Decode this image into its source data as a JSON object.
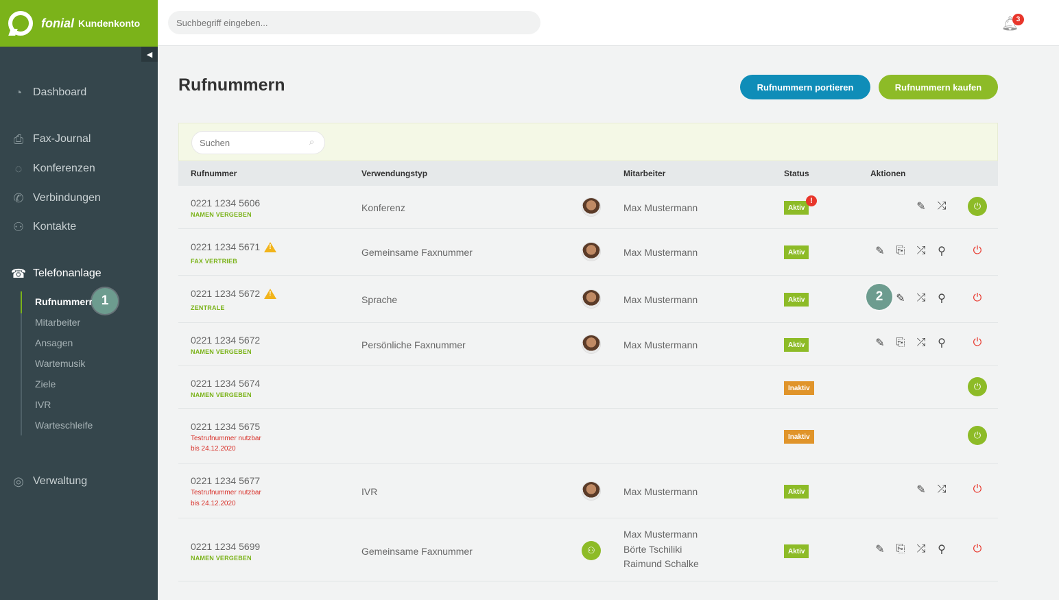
{
  "brand": {
    "name": "fonial",
    "sub": "Kundenkonto"
  },
  "topbar": {
    "search_placeholder": "Suchbegriff eingeben...",
    "notification_count": "3"
  },
  "sidebar": {
    "items": [
      {
        "label": "Dashboard",
        "icon": "dashboard-icon"
      },
      {
        "label": "Fax-Journal",
        "icon": "fax-icon"
      },
      {
        "label": "Konferenzen",
        "icon": "conference-icon"
      },
      {
        "label": "Verbindungen",
        "icon": "phone-icon"
      },
      {
        "label": "Kontakte",
        "icon": "contacts-icon"
      },
      {
        "label": "Telefonanlage",
        "icon": "pbx-icon"
      },
      {
        "label": "Verwaltung",
        "icon": "user-icon"
      }
    ],
    "subitems": [
      "Rufnummern",
      "Mitarbeiter",
      "Ansagen",
      "Wartemusik",
      "Ziele",
      "IVR",
      "Warteschleife"
    ],
    "step1": "1"
  },
  "main": {
    "title": "Rufnummern",
    "btn_port": "Rufnummern portieren",
    "btn_buy": "Rufnummern kaufen",
    "search_placeholder": "Suchen",
    "step2": "2",
    "headers": {
      "number": "Rufnummer",
      "type": "Verwendungstyp",
      "employee": "Mitarbeiter",
      "status": "Status",
      "actions": "Aktionen"
    }
  },
  "rows": [
    {
      "number": "0221 1234 5606",
      "sub": "NAMEN VERGEBEN",
      "type": "Konferenz",
      "employee": "Max Mustermann",
      "status": "Aktiv"
    },
    {
      "number": "0221 1234 5671",
      "sub": "FAX VERTRIEB",
      "type": "Gemeinsame Faxnummer",
      "employee": "Max Mustermann",
      "status": "Aktiv"
    },
    {
      "number": "0221 1234 5672",
      "sub": "ZENTRALE",
      "type": "Sprache",
      "employee": "Max Mustermann",
      "status": "Aktiv"
    },
    {
      "number": "0221 1234 5672",
      "sub": "NAMEN VERGEBEN",
      "type": "Persönliche Faxnummer",
      "employee": "Max Mustermann",
      "status": "Aktiv"
    },
    {
      "number": "0221 1234 5674",
      "sub": "NAMEN VERGEBEN",
      "status": "Inaktiv"
    },
    {
      "number": "0221 1234 5675",
      "sub1": "Testrufnummer nutzbar",
      "sub2": "bis 24.12.2020",
      "status": "Inaktiv"
    },
    {
      "number": "0221 1234 5677",
      "sub1": "Testrufnummer nutzbar",
      "sub2": "bis 24.12.2020",
      "type": "IVR",
      "employee": "Max Mustermann",
      "status": "Aktiv"
    },
    {
      "number": "0221 1234 5699",
      "sub": "NAMEN VERGEBEN",
      "type": "Gemeinsame Faxnummer",
      "employees": [
        "Max Mustermann",
        "Börte Tschiliki",
        "Raimund Schalke"
      ],
      "status": "Aktiv"
    }
  ],
  "colors": {
    "brand_green": "#7bb31a",
    "sidebar": "#35464c",
    "port_blue": "#0f8db8",
    "inactive_orange": "#e0942a",
    "alert_red": "#e8362b"
  }
}
